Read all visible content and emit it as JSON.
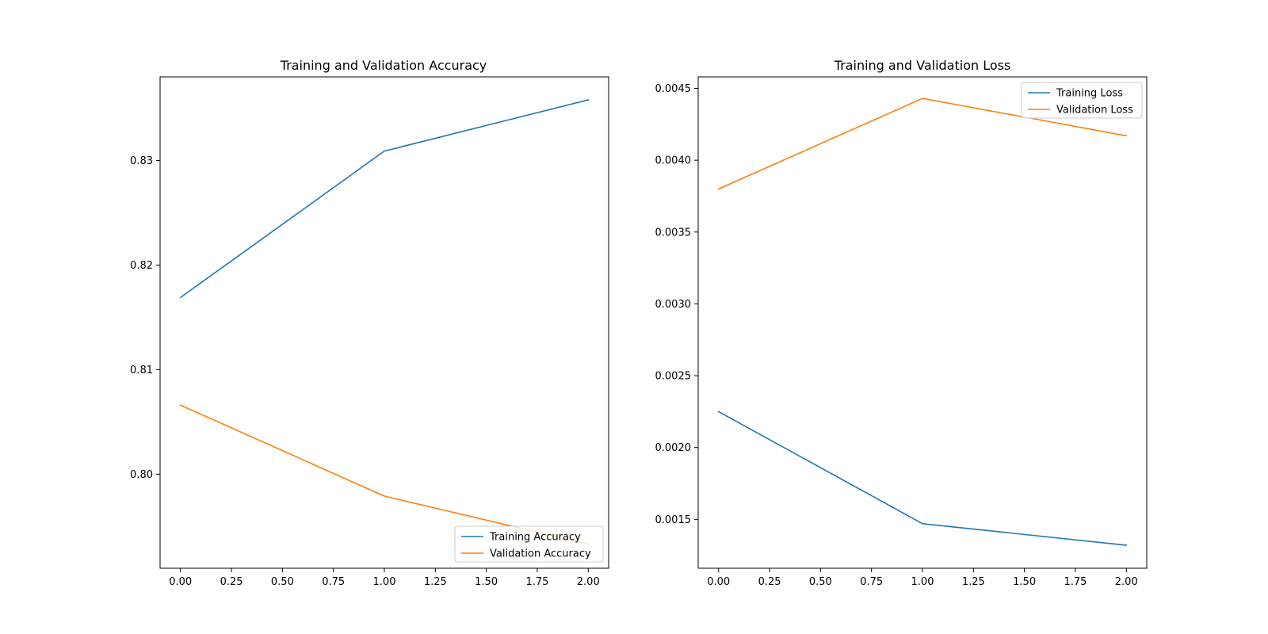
{
  "chart_data": [
    {
      "type": "line",
      "title": "Training and Validation Accuracy",
      "xlabel": "",
      "ylabel": "",
      "xlim": [
        -0.1,
        2.1
      ],
      "ylim": [
        0.791,
        0.838
      ],
      "x_ticks": [
        0.0,
        0.25,
        0.5,
        0.75,
        1.0,
        1.25,
        1.5,
        1.75,
        2.0
      ],
      "x_tick_labels": [
        "0.00",
        "0.25",
        "0.50",
        "0.75",
        "1.00",
        "1.25",
        "1.50",
        "1.75",
        "2.00"
      ],
      "y_ticks": [
        0.8,
        0.81,
        0.82,
        0.83
      ],
      "y_tick_labels": [
        "0.80",
        "0.81",
        "0.82",
        "0.83"
      ],
      "grid": false,
      "legend_position": "lower right",
      "x": [
        0,
        1,
        2
      ],
      "series": [
        {
          "name": "Training Accuracy",
          "color": "#1f77b4",
          "values": [
            0.8169,
            0.8309,
            0.8358
          ]
        },
        {
          "name": "Validation Accuracy",
          "color": "#ff7f0e",
          "values": [
            0.8066,
            0.7979,
            0.7933
          ]
        }
      ]
    },
    {
      "type": "line",
      "title": "Training and Validation Loss",
      "xlabel": "",
      "ylabel": "",
      "xlim": [
        -0.1,
        2.1
      ],
      "ylim": [
        0.00116,
        0.00458
      ],
      "x_ticks": [
        0.0,
        0.25,
        0.5,
        0.75,
        1.0,
        1.25,
        1.5,
        1.75,
        2.0
      ],
      "x_tick_labels": [
        "0.00",
        "0.25",
        "0.50",
        "0.75",
        "1.00",
        "1.25",
        "1.50",
        "1.75",
        "2.00"
      ],
      "y_ticks": [
        0.0015,
        0.002,
        0.0025,
        0.003,
        0.0035,
        0.004,
        0.0045
      ],
      "y_tick_labels": [
        "0.0015",
        "0.0020",
        "0.0025",
        "0.0030",
        "0.0035",
        "0.0040",
        "0.0045"
      ],
      "grid": false,
      "legend_position": "upper right",
      "x": [
        0,
        1,
        2
      ],
      "series": [
        {
          "name": "Training Loss",
          "color": "#1f77b4",
          "values": [
            0.00225,
            0.00147,
            0.00132
          ]
        },
        {
          "name": "Validation Loss",
          "color": "#ff7f0e",
          "values": [
            0.0038,
            0.00443,
            0.00417
          ]
        }
      ]
    }
  ]
}
